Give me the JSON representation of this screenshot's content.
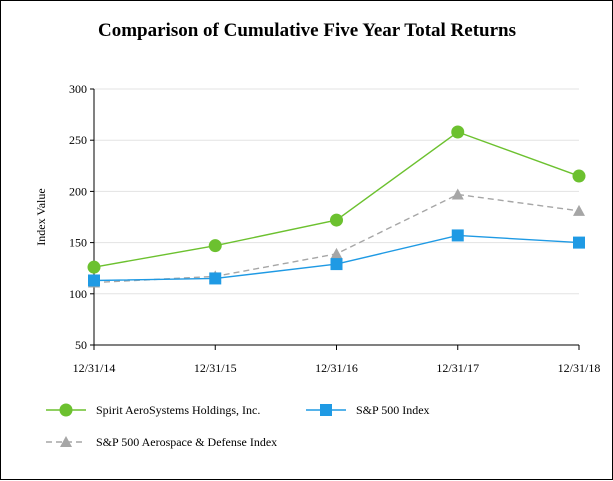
{
  "chart_data": {
    "type": "line",
    "title": "Comparison of Cumulative Five Year Total Returns",
    "xlabel": "",
    "ylabel": "Index Value",
    "categories": [
      "12/31/14",
      "12/31/15",
      "12/31/16",
      "12/31/17",
      "12/31/18"
    ],
    "ylim": [
      50,
      300
    ],
    "yticks": [
      50,
      100,
      150,
      200,
      250,
      300
    ],
    "grid": "horizontal",
    "legend_position": "bottom",
    "series": [
      {
        "name": "Spirit AeroSystems Holdings, Inc.",
        "values": [
          126,
          147,
          172,
          258,
          215
        ],
        "color": "#6cc12f",
        "marker": "circle",
        "dash": "solid"
      },
      {
        "name": "S&P 500 Index",
        "values": [
          113,
          115,
          129,
          157,
          150
        ],
        "color": "#1f9ae4",
        "marker": "square",
        "dash": "solid"
      },
      {
        "name": "S&P 500 Aerospace & Defense Index",
        "values": [
          111,
          117,
          139,
          197,
          181
        ],
        "color": "#a6a6a6",
        "marker": "triangle",
        "dash": "dashed"
      }
    ]
  }
}
